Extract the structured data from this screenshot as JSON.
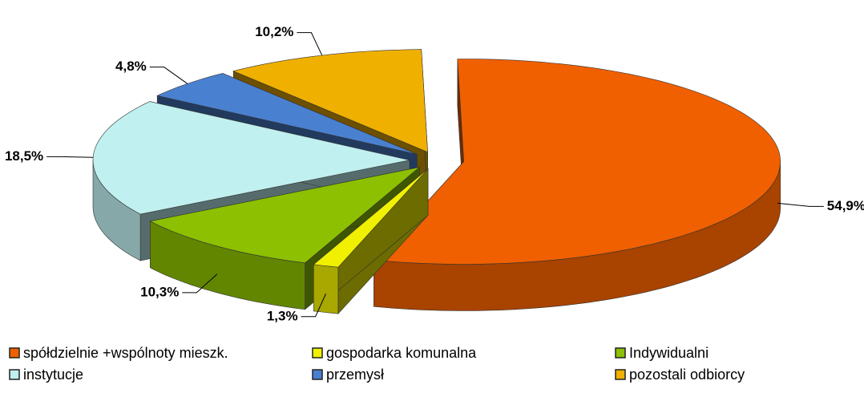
{
  "chart_data": {
    "type": "pie",
    "categories": [
      "spółdzielnie +wspólnoty mieszk.",
      "gospodarka komunalna",
      "Indywidualni",
      "instytucje",
      "przemysł",
      "pozostali odbiorcy"
    ],
    "values": [
      54.9,
      1.3,
      10.3,
      18.5,
      4.8,
      10.2
    ],
    "value_labels": [
      "54,9%",
      "1,3%",
      "10,3%",
      "18,5%",
      "4,8%",
      "10,2%"
    ],
    "colors": [
      "#f06000",
      "#f0f000",
      "#8cc000",
      "#c0f0f0",
      "#4a80d0",
      "#f0b000"
    ],
    "legend": "bottom"
  }
}
